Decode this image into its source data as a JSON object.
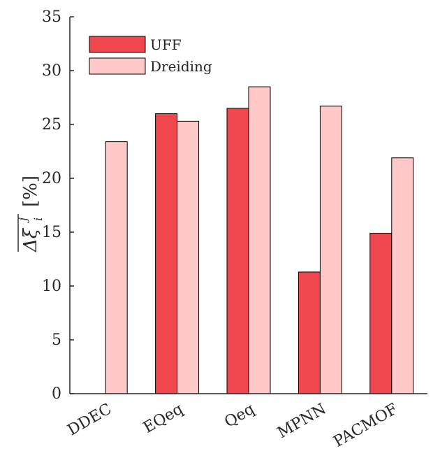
{
  "chart_data": {
    "type": "bar",
    "categories": [
      "DDEC",
      "EQeq",
      "Qeq",
      "MPNN",
      "PACMOF"
    ],
    "series": [
      {
        "name": "UFF",
        "values": [
          null,
          26.0,
          26.5,
          11.3,
          14.9
        ],
        "color": "#f0474f"
      },
      {
        "name": "Dreiding",
        "values": [
          23.4,
          25.3,
          28.5,
          26.7,
          21.9
        ],
        "color": "#ffc8c9"
      }
    ],
    "ylabel": "Δξ",
    "ylabel_super": "j",
    "ylabel_sub": "i",
    "ylabel_unit": "[%]",
    "xlabel": "",
    "ylim": [
      0,
      35
    ],
    "yticks": [
      0,
      5,
      10,
      15,
      20,
      25,
      30,
      35
    ],
    "legend_position": "top-left",
    "grid": false,
    "axis_color": "#262626",
    "bar_edge_color": "#000000"
  }
}
